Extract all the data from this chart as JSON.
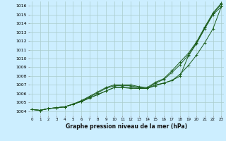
{
  "title": "Graphe pression niveau de la mer (hPa)",
  "bg_color": "#cceeff",
  "grid_color": "#aacccc",
  "line_color": "#1a5c1a",
  "x_ticks": [
    0,
    1,
    2,
    3,
    4,
    5,
    6,
    7,
    8,
    9,
    10,
    11,
    12,
    13,
    14,
    15,
    16,
    17,
    18,
    19,
    20,
    21,
    22,
    23
  ],
  "ylim": [
    1003.5,
    1016.5
  ],
  "xlim": [
    -0.3,
    23.3
  ],
  "yticks": [
    1004,
    1005,
    1006,
    1007,
    1008,
    1009,
    1010,
    1011,
    1012,
    1013,
    1014,
    1015,
    1016
  ],
  "series": [
    [
      1004.2,
      1004.1,
      1004.3,
      1004.4,
      1004.5,
      1004.8,
      1005.1,
      1005.5,
      1005.9,
      1006.3,
      1006.7,
      1006.7,
      1006.7,
      1006.6,
      1006.6,
      1007.0,
      1007.2,
      1007.5,
      1008.0,
      1010.3,
      1011.7,
      1013.4,
      1015.0,
      1015.9
    ],
    [
      1004.2,
      1004.1,
      1004.3,
      1004.4,
      1004.5,
      1004.8,
      1005.1,
      1005.5,
      1005.9,
      1006.3,
      1006.7,
      1006.7,
      1006.6,
      1006.6,
      1006.6,
      1006.9,
      1007.2,
      1007.5,
      1008.2,
      1009.2,
      1010.4,
      1011.8,
      1013.4,
      1015.9
    ],
    [
      1004.2,
      1004.1,
      1004.3,
      1004.4,
      1004.5,
      1004.8,
      1005.2,
      1005.6,
      1006.1,
      1006.6,
      1006.9,
      1006.9,
      1006.9,
      1006.7,
      1006.6,
      1007.2,
      1007.6,
      1008.4,
      1009.3,
      1010.4,
      1011.8,
      1013.5,
      1015.1,
      1016.2
    ],
    [
      1004.2,
      1004.1,
      1004.3,
      1004.4,
      1004.5,
      1004.8,
      1005.2,
      1005.7,
      1006.2,
      1006.7,
      1007.0,
      1007.0,
      1007.0,
      1006.8,
      1006.7,
      1007.3,
      1007.7,
      1008.6,
      1009.6,
      1010.6,
      1011.9,
      1013.6,
      1015.2,
      1016.3
    ]
  ]
}
